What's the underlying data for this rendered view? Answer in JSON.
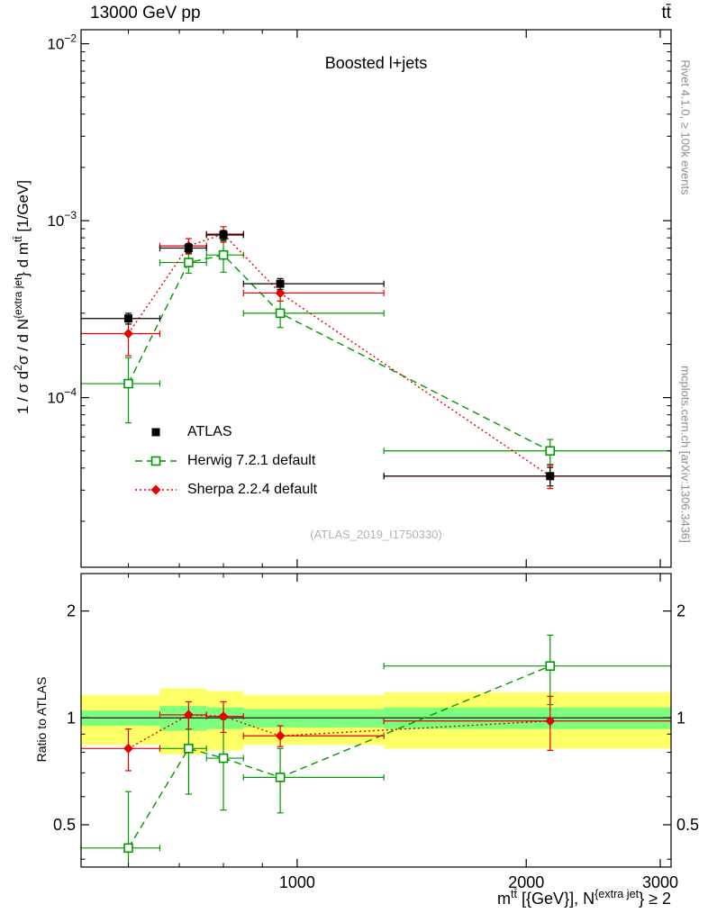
{
  "header": {
    "left_title": "13000 GeV pp",
    "right_title": "tt̄"
  },
  "main_plot": {
    "panel_title": "Boosted l+jets",
    "watermark": "(ATLAS_2019_I1750330)",
    "y_label_parts": {
      "p1": "1 / σ d",
      "sup1": "2",
      "p2": "σ / d N",
      "sup2": "{extra jet",
      "p3": "} d m",
      "sup3": "tt̄",
      "p4": " [1/GeV]"
    }
  },
  "x_axis_label_parts": {
    "p1": "m",
    "sup1": "tt̄",
    "p2": " [{GeV}], N",
    "sup2": "{extra jet",
    "p3": "} ≥ 2"
  },
  "ratio_plot": {
    "y_label": "Ratio to ATLAS"
  },
  "side_notes": {
    "top_right": "Rivet 4.1.0, ≥ 100k events",
    "bottom_right": "mcplots.cern.ch [arXiv:1306.3436]"
  },
  "legend": {
    "items": [
      {
        "label": "ATLAS",
        "marker": "filled-square",
        "color": "#000000",
        "line": "none"
      },
      {
        "label": "Herwig 7.2.1 default",
        "marker": "open-square",
        "color": "#009900",
        "line": "dashed"
      },
      {
        "label": "Sherpa 2.2.4 default",
        "marker": "filled-diamond",
        "color": "#e60000",
        "line": "dotted"
      }
    ]
  },
  "chart_data": {
    "type": "scatter",
    "title": "Boosted l+jets",
    "xlabel": "m^tt [GeV], N^extra-jet >= 2",
    "ylabel": "1/sigma d2sigma / dN^extra-jet dm^tt [1/GeV]",
    "x_axis": {
      "scale": "log",
      "min": 520,
      "max": 3100,
      "major_ticks": [
        1000,
        2000,
        3000
      ],
      "tick_labels": [
        "1000",
        "2000",
        "3000"
      ],
      "minor_ticks": [
        600,
        700,
        800,
        900
      ]
    },
    "y_axis_main": {
      "scale": "log",
      "min": 1.1e-05,
      "max": 0.012,
      "major_ticks": [
        0.01,
        0.001,
        0.0001
      ],
      "tick_label_exponents": [
        "−2",
        "−3",
        "−4"
      ]
    },
    "y_axis_ratio": {
      "scale": "log",
      "min": 0.38,
      "max": 2.55,
      "labeled_ticks": [
        0.5,
        1,
        2
      ],
      "tick_labels": [
        "0.5",
        "1",
        "2"
      ],
      "minor_ticks": [
        0.4,
        0.6,
        0.7,
        0.8,
        0.9
      ]
    },
    "bins": [
      [
        520,
        660
      ],
      [
        660,
        760
      ],
      [
        760,
        850
      ],
      [
        850,
        1300
      ],
      [
        1300,
        3100
      ]
    ],
    "series": [
      {
        "name": "ATLAS",
        "color": "#000000",
        "marker": "filled-square",
        "line": "none",
        "x": [
          600,
          720,
          800,
          950,
          2150
        ],
        "y": [
          0.00028,
          0.0007,
          0.00083,
          0.00044,
          3.6e-05
        ],
        "yerr_rel": [
          0.07,
          0.06,
          0.06,
          0.07,
          0.12
        ]
      },
      {
        "name": "Herwig 7.2.1 default",
        "color": "#009900",
        "marker": "open-square",
        "line": "dashed",
        "x": [
          600,
          720,
          800,
          950,
          2150
        ],
        "y": [
          0.00012,
          0.00058,
          0.00064,
          0.0003,
          5e-05
        ],
        "yerr_rel": [
          0.4,
          0.13,
          0.2,
          0.17,
          0.16
        ]
      },
      {
        "name": "Sherpa 2.2.4 default",
        "color": "#e60000",
        "marker": "filled-diamond",
        "line": "dotted",
        "x": [
          600,
          720,
          800,
          950,
          2150
        ],
        "y": [
          0.00023,
          0.00072,
          0.00084,
          0.00039,
          3.6e-05
        ],
        "yerr_rel": [
          0.25,
          0.1,
          0.1,
          0.1,
          0.15
        ]
      }
    ],
    "ratio": {
      "reference_line": 1,
      "band_colors": {
        "yellow": "#ffff66",
        "green": "#7dff7d"
      },
      "bands": [
        {
          "lo": 520,
          "hi": 660,
          "yellow": [
            0.84,
            1.16
          ],
          "green": [
            0.95,
            1.05
          ]
        },
        {
          "lo": 660,
          "hi": 760,
          "yellow": [
            0.79,
            1.21
          ],
          "green": [
            0.92,
            1.08
          ]
        },
        {
          "lo": 760,
          "hi": 850,
          "yellow": [
            0.81,
            1.19
          ],
          "green": [
            0.93,
            1.07
          ]
        },
        {
          "lo": 850,
          "hi": 1300,
          "yellow": [
            0.84,
            1.16
          ],
          "green": [
            0.94,
            1.06
          ]
        },
        {
          "lo": 1300,
          "hi": 3100,
          "yellow": [
            0.82,
            1.18
          ],
          "green": [
            0.93,
            1.07
          ]
        }
      ],
      "series": [
        {
          "name": "Herwig 7.2.1 default",
          "color": "#009900",
          "marker": "open-square",
          "line": "dashed",
          "x": [
            600,
            720,
            800,
            950,
            2150
          ],
          "r": [
            0.43,
            0.82,
            0.77,
            0.68,
            1.4
          ],
          "rerr": [
            0.19,
            0.21,
            0.22,
            0.14,
            0.31
          ]
        },
        {
          "name": "Sherpa 2.2.4 default",
          "color": "#e60000",
          "marker": "filled-diamond",
          "line": "dotted",
          "x": [
            600,
            720,
            800,
            950,
            2150
          ],
          "r": [
            0.82,
            1.02,
            1.01,
            0.89,
            0.98
          ],
          "rerr": [
            0.11,
            0.09,
            0.1,
            0.06,
            0.17
          ]
        }
      ]
    }
  }
}
